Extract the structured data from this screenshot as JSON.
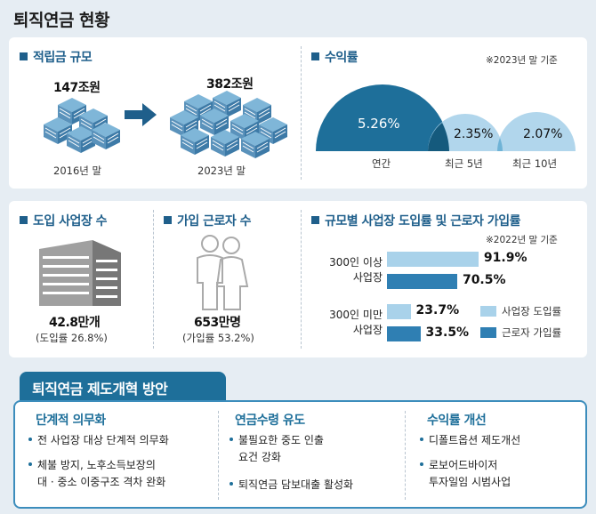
{
  "title": "퇴직연금 현황",
  "fund": {
    "heading": "적립금 규모",
    "left_value": "147조원",
    "left_caption": "2016년 말",
    "right_value": "382조원",
    "right_caption": "2023년 말"
  },
  "returns": {
    "heading": "수익률",
    "note": "※2023년 말 기준",
    "items": [
      {
        "value": "5.26%",
        "label": "연간"
      },
      {
        "value": "2.35%",
        "label": "최근 5년"
      },
      {
        "value": "2.07%",
        "label": "최근 10년"
      }
    ]
  },
  "workplaces": {
    "heading": "도입 사업장 수",
    "value": "42.8만개",
    "sub": "(도입률 26.8%)"
  },
  "workers": {
    "heading": "가입 근로자 수",
    "value": "653만명",
    "sub": "(가입률 53.2%)"
  },
  "chart": {
    "heading": "규모별 사업장 도입률 및 근로자 가입률",
    "note": "※2022년 말 기준",
    "legend": [
      {
        "label": "사업장 도입률",
        "color": "#a9d2ea"
      },
      {
        "label": "근로자 가입률",
        "color": "#2f7fb3"
      }
    ]
  },
  "chart_data": {
    "type": "bar",
    "orientation": "horizontal",
    "categories": [
      "300인 이상\n사업장",
      "300인 미만\n사업장"
    ],
    "category_lines": [
      [
        "300인 이상",
        "사업장"
      ],
      [
        "300인 미만",
        "사업장"
      ]
    ],
    "series": [
      {
        "name": "사업장 도입률",
        "values": [
          91.9,
          23.7
        ],
        "labels": [
          "91.9%",
          "23.7%"
        ],
        "color": "#a9d2ea"
      },
      {
        "name": "근로자 가입률",
        "values": [
          70.5,
          33.5
        ],
        "labels": [
          "70.5%",
          "33.5%"
        ],
        "color": "#2f7fb3"
      }
    ],
    "xlim": [
      0,
      100
    ],
    "legend_position": "bottom-right"
  },
  "reform": {
    "title": "퇴직연금 제도개혁 방안",
    "columns": [
      {
        "heading": "단계적 의무화",
        "bullets": [
          [
            "전 사업장 대상 단계적 의무화"
          ],
          [
            "체불 방지, 노후소득보장의",
            "대 · 중소 이중구조 격차 완화"
          ]
        ]
      },
      {
        "heading": "연금수령 유도",
        "bullets": [
          [
            "불필요한 중도 인출",
            "요건 강화"
          ],
          [
            "퇴직연금 담보대출 활성화"
          ]
        ]
      },
      {
        "heading": "수익률 개선",
        "bullets": [
          [
            "디폴트옵션 제도개선"
          ],
          [
            "로보어드바이저",
            "투자일임 시범사업"
          ]
        ]
      }
    ]
  }
}
